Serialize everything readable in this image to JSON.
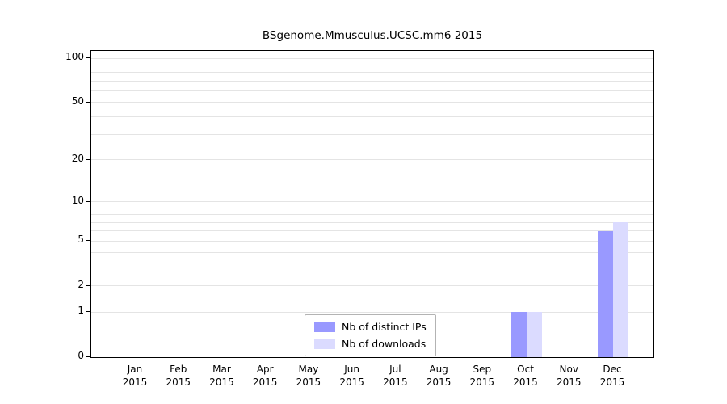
{
  "title": "BSgenome.Mmusculus.UCSC.mm6 2015",
  "chart_data": {
    "type": "bar",
    "title": "BSgenome.Mmusculus.UCSC.mm6 2015",
    "categories": [
      "Jan",
      "Feb",
      "Mar",
      "Apr",
      "May",
      "Jun",
      "Jul",
      "Aug",
      "Sep",
      "Oct",
      "Nov",
      "Dec"
    ],
    "year": "2015",
    "series": [
      {
        "name": "Nb of distinct IPs",
        "color": "#9999ff",
        "values": [
          0,
          0,
          0,
          0,
          0,
          0,
          0,
          0,
          0,
          1,
          0,
          6
        ]
      },
      {
        "name": "Nb of downloads",
        "color": "#dbdbff",
        "values": [
          0,
          0,
          0,
          0,
          0,
          0,
          0,
          0,
          0,
          1,
          0,
          7
        ]
      }
    ],
    "scale": "log1p",
    "ylim": [
      0,
      100
    ],
    "y_ticks": [
      0,
      1,
      2,
      5,
      10,
      20,
      50,
      100
    ],
    "gridlines": [
      1,
      2,
      3,
      4,
      5,
      6,
      7,
      8,
      9,
      10,
      20,
      30,
      40,
      50,
      60,
      70,
      80,
      90,
      100
    ],
    "grid": true,
    "legend_position": "bottom-center"
  }
}
